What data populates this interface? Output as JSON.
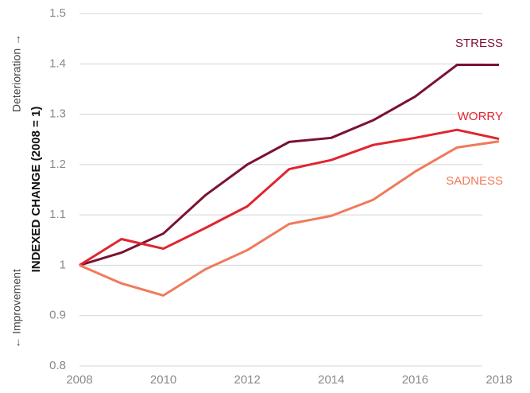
{
  "chart_data": {
    "type": "line",
    "ylabel": "INDEXED CHANGE (2008 = 1)",
    "annotations": [
      "Deterioration →",
      "← Improvement"
    ],
    "x": [
      2008,
      2009,
      2010,
      2011,
      2012,
      2013,
      2014,
      2015,
      2016,
      2017,
      2018
    ],
    "xlim": [
      2008,
      2018
    ],
    "xticks": [
      2008,
      2010,
      2012,
      2014,
      2016,
      2018
    ],
    "ylim": [
      0.8,
      1.5
    ],
    "yticks": [
      0.8,
      0.9,
      1,
      1.1,
      1.2,
      1.3,
      1.4,
      1.5
    ],
    "grid": true,
    "series": [
      {
        "name": "STRESS",
        "color": "#7b1230",
        "values": [
          1.0,
          1.025,
          1.063,
          1.139,
          1.2,
          1.245,
          1.253,
          1.288,
          1.335,
          1.398,
          1.398
        ]
      },
      {
        "name": "WORRY",
        "color": "#e0252f",
        "values": [
          1.0,
          1.052,
          1.033,
          1.074,
          1.117,
          1.191,
          1.209,
          1.239,
          1.253,
          1.269,
          1.251
        ]
      },
      {
        "name": "SADNESS",
        "color": "#f07a5a",
        "values": [
          1.0,
          0.964,
          0.94,
          0.992,
          1.03,
          1.082,
          1.098,
          1.13,
          1.186,
          1.234,
          1.246
        ]
      }
    ]
  }
}
